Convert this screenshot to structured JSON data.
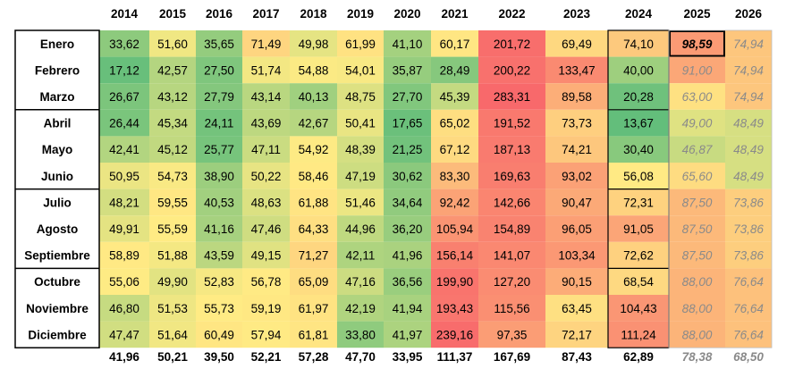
{
  "chart_data": {
    "type": "heatmap",
    "columns": [
      "2014",
      "2015",
      "2016",
      "2017",
      "2018",
      "2019",
      "2020",
      "2021",
      "2022",
      "2023",
      "2024",
      "2025",
      "2026"
    ],
    "rows": [
      {
        "month": "Enero",
        "values": [
          "33,62",
          "51,60",
          "35,65",
          "71,49",
          "49,98",
          "61,99",
          "41,10",
          "60,17",
          "201,72",
          "69,49",
          "74,10",
          "98,59",
          "74,94"
        ]
      },
      {
        "month": "Febrero",
        "values": [
          "17,12",
          "42,57",
          "27,50",
          "51,74",
          "54,88",
          "54,01",
          "35,87",
          "28,49",
          "200,22",
          "133,47",
          "40,00",
          "91,00",
          "74,94"
        ]
      },
      {
        "month": "Marzo",
        "values": [
          "26,67",
          "43,12",
          "27,79",
          "43,14",
          "40,13",
          "48,75",
          "27,70",
          "45,39",
          "283,31",
          "89,58",
          "20,28",
          "63,00",
          "74,94"
        ]
      },
      {
        "month": "Abril",
        "values": [
          "26,44",
          "45,34",
          "24,11",
          "43,69",
          "42,67",
          "50,41",
          "17,65",
          "65,02",
          "191,52",
          "73,73",
          "13,67",
          "49,00",
          "48,49"
        ]
      },
      {
        "month": "Mayo",
        "values": [
          "42,41",
          "45,12",
          "25,77",
          "47,11",
          "54,92",
          "48,39",
          "21,25",
          "67,12",
          "187,13",
          "74,21",
          "30,40",
          "46,87",
          "48,49"
        ]
      },
      {
        "month": "Junio",
        "values": [
          "50,95",
          "54,73",
          "38,90",
          "50,22",
          "58,46",
          "47,19",
          "30,62",
          "83,30",
          "169,63",
          "93,02",
          "56,08",
          "65,60",
          "48,49"
        ]
      },
      {
        "month": "Julio",
        "values": [
          "48,21",
          "59,55",
          "40,53",
          "48,63",
          "61,88",
          "51,46",
          "34,64",
          "92,42",
          "142,66",
          "90,47",
          "72,31",
          "87,50",
          "73,86"
        ]
      },
      {
        "month": "Agosto",
        "values": [
          "49,91",
          "55,59",
          "41,16",
          "47,46",
          "64,33",
          "44,96",
          "36,20",
          "105,94",
          "154,89",
          "96,05",
          "91,05",
          "87,50",
          "73,86"
        ]
      },
      {
        "month": "Septiembre",
        "values": [
          "58,89",
          "51,88",
          "43,59",
          "49,15",
          "71,27",
          "42,11",
          "41,96",
          "156,14",
          "141,07",
          "103,34",
          "72,62",
          "87,50",
          "73,86"
        ]
      },
      {
        "month": "Octubre",
        "values": [
          "55,06",
          "49,90",
          "52,83",
          "56,78",
          "65,09",
          "47,16",
          "36,56",
          "199,90",
          "127,20",
          "90,15",
          "68,54",
          "88,00",
          "76,64"
        ]
      },
      {
        "month": "Noviembre",
        "values": [
          "46,80",
          "51,53",
          "55,73",
          "59,19",
          "61,97",
          "42,19",
          "41,94",
          "193,43",
          "115,56",
          "63,45",
          "104,43",
          "88,00",
          "76,64"
        ]
      },
      {
        "month": "Diciembre",
        "values": [
          "47,47",
          "51,64",
          "60,49",
          "57,94",
          "61,81",
          "33,80",
          "41,97",
          "239,16",
          "97,35",
          "72,17",
          "111,24",
          "88,00",
          "76,64"
        ]
      }
    ],
    "averages": [
      "41,96",
      "50,21",
      "39,50",
      "52,21",
      "57,28",
      "47,70",
      "33,95",
      "111,37",
      "167,69",
      "87,43",
      "62,89",
      "78,38",
      "68,50"
    ],
    "forecast_columns": [
      "2025",
      "2026"
    ],
    "highlighted_cell": {
      "month": "Enero",
      "year": "2025"
    }
  }
}
